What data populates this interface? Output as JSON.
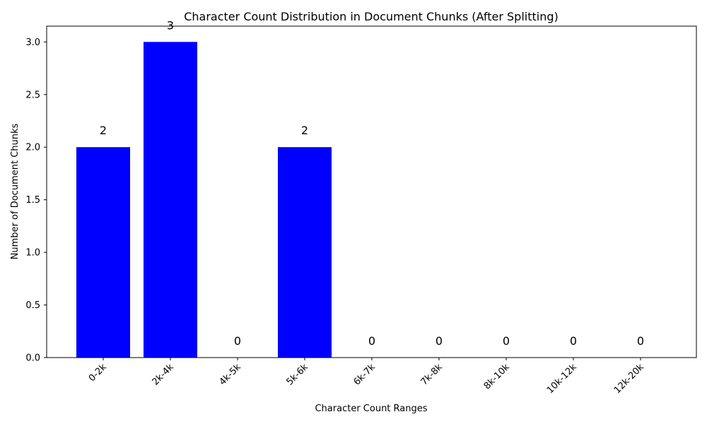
{
  "chart_data": {
    "type": "bar",
    "title": "Character Count Distribution in Document Chunks (After Splitting)",
    "xlabel": "Character Count Ranges",
    "ylabel": "Number of Document Chunks",
    "categories": [
      "0-2k",
      "2k-4k",
      "4k-5k",
      "5k-6k",
      "6k-7k",
      "7k-8k",
      "8k-10k",
      "10k-12k",
      "12k-20k"
    ],
    "values": [
      2,
      3,
      0,
      2,
      0,
      0,
      0,
      0,
      0
    ],
    "ylim": [
      0,
      3.15
    ],
    "yticks": [
      0.0,
      0.5,
      1.0,
      1.5,
      2.0,
      2.5,
      3.0
    ],
    "ytick_labels": [
      "0.0",
      "0.5",
      "1.0",
      "1.5",
      "2.0",
      "2.5",
      "3.0"
    ],
    "bar_color": "#0000ff",
    "grid": false,
    "legend": "none",
    "xtick_rotation_deg": 45
  }
}
